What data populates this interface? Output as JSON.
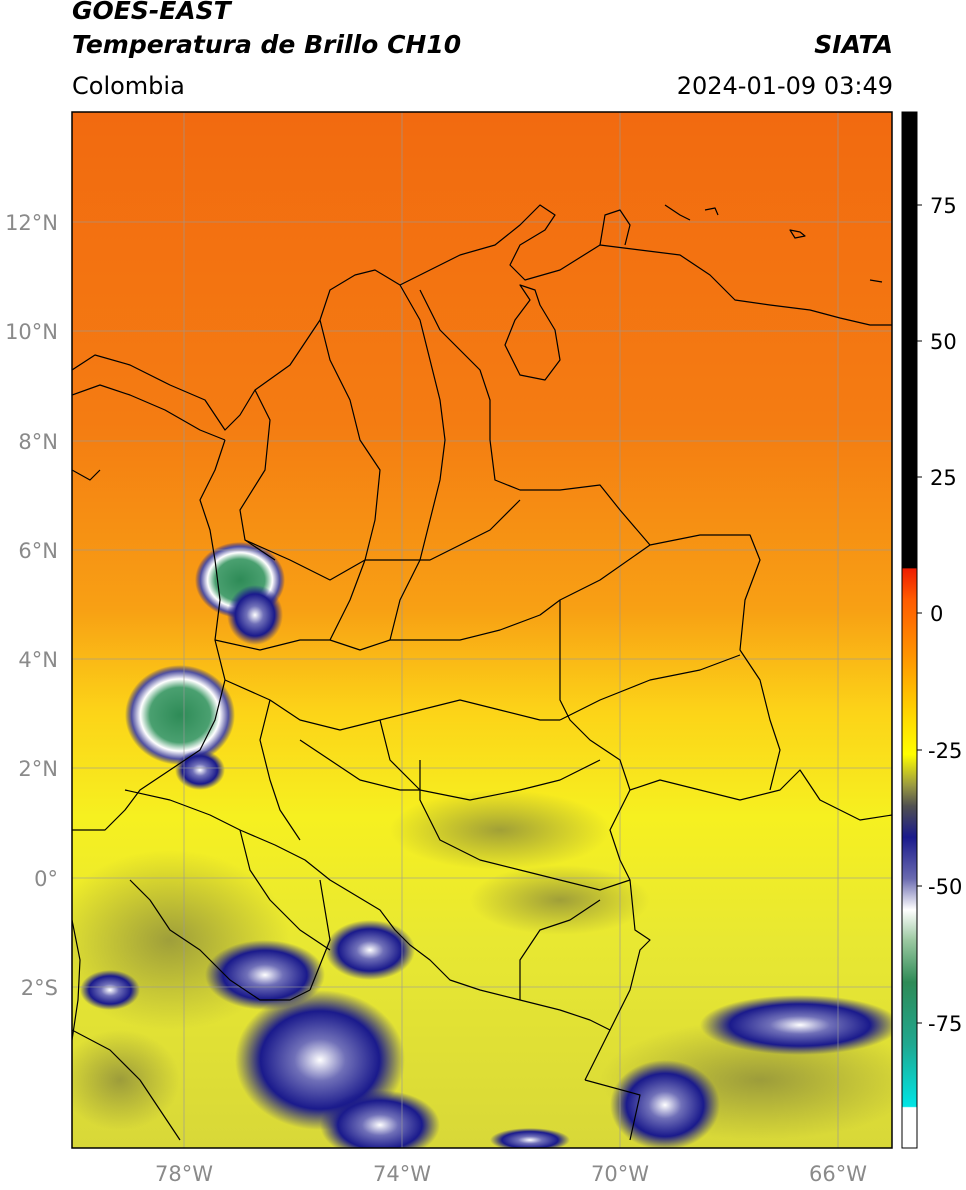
{
  "header": {
    "satellite": "GOES-EAST",
    "product": "Temperatura de Brillo CH10",
    "region": "Colombia",
    "agency": "SIATA",
    "datetime": "2024-01-09 03:49"
  },
  "map": {
    "lat_labels": [
      "12°N",
      "10°N",
      "8°N",
      "6°N",
      "4°N",
      "2°N",
      "0°",
      "2°S"
    ],
    "lon_labels": [
      "78°W",
      "74°W",
      "70°W",
      "66°W"
    ],
    "lat_values": [
      12,
      10,
      8,
      6,
      4,
      2,
      0,
      -2
    ],
    "lon_values": [
      -78,
      -74,
      -70,
      -66
    ]
  },
  "colorbar": {
    "ticks": [
      "75",
      "50",
      "25",
      "0",
      "-25",
      "-50",
      "-75"
    ],
    "tick_values": [
      75,
      50,
      25,
      0,
      -25,
      -50,
      -75
    ],
    "range": [
      -97,
      90
    ],
    "colors": {
      "black": "#000000",
      "red": "#ee1c00",
      "orange": "#ff8a00",
      "yellow": "#ffff00",
      "olive": "#8c8c3c",
      "navy": "#1a1a8c",
      "white": "#ffffff",
      "green": "#2e8b57",
      "cyan": "#00e5e5"
    }
  }
}
